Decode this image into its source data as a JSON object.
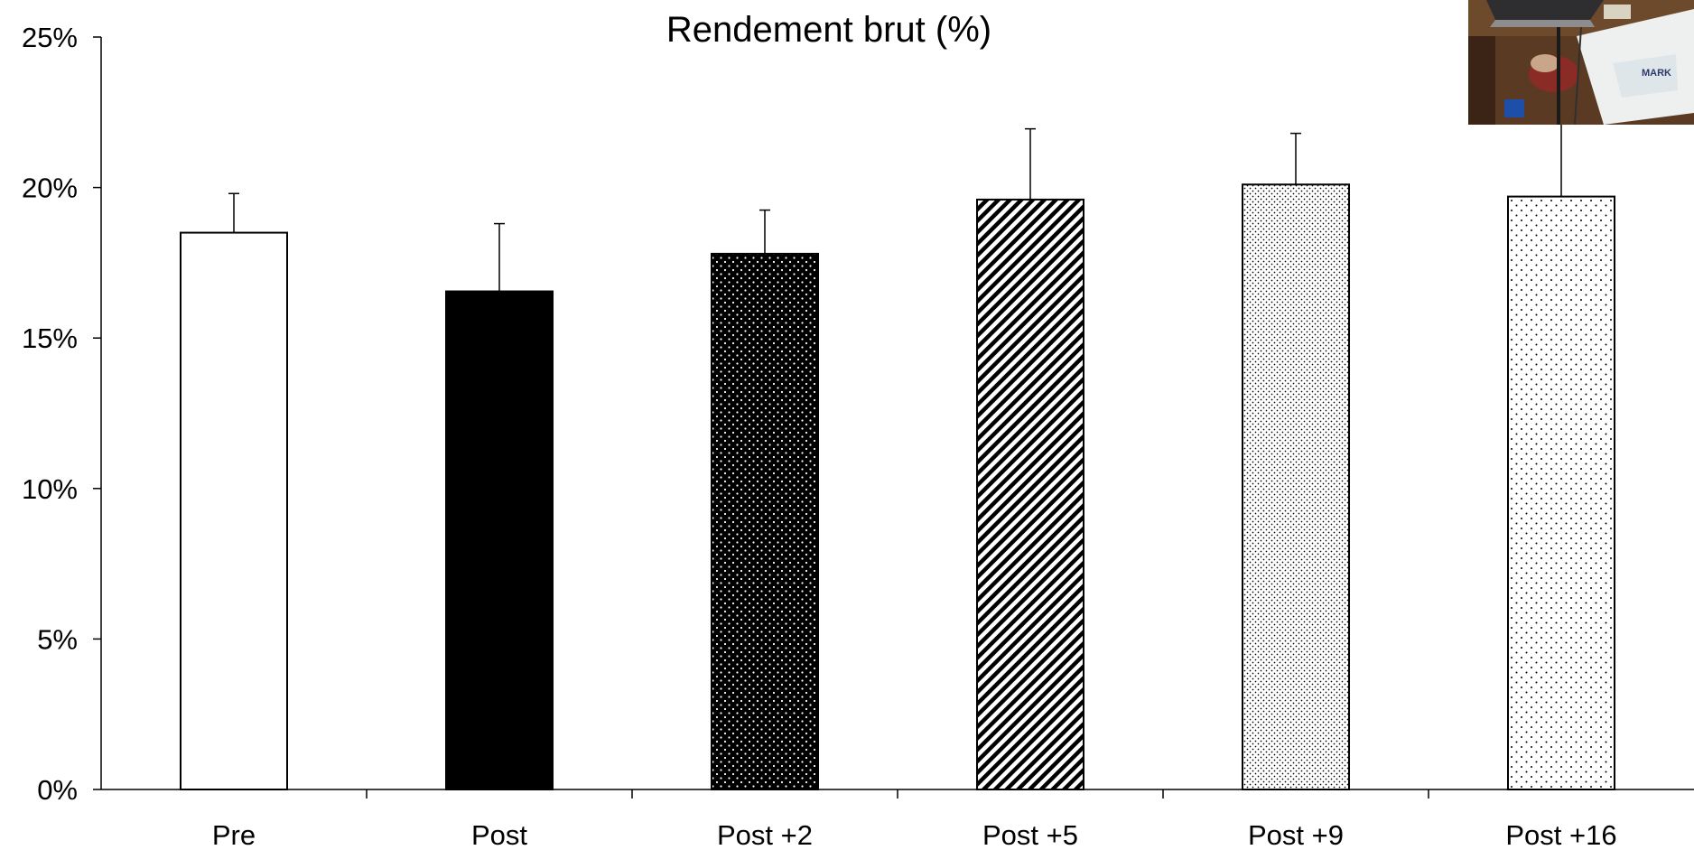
{
  "chart_data": {
    "type": "bar",
    "title": "Rendement brut (%)",
    "xlabel": "",
    "ylabel": "",
    "categories": [
      "Pre",
      "Post",
      "Post +2",
      "Post +5",
      "Post +9",
      "Post +16"
    ],
    "values": [
      18.5,
      16.55,
      17.8,
      19.6,
      20.1,
      19.7
    ],
    "error_upper": [
      1.3,
      2.25,
      1.45,
      2.35,
      1.7,
      2.5
    ],
    "ylim": [
      0,
      25
    ],
    "yticks": [
      "0%",
      "5%",
      "10%",
      "15%",
      "20%",
      "25%"
    ],
    "grid": false,
    "legend": "none",
    "bar_fills": [
      "white",
      "black",
      "black-dots",
      "diagonal-stripes",
      "dense-dots",
      "sparse-dots"
    ]
  }
}
